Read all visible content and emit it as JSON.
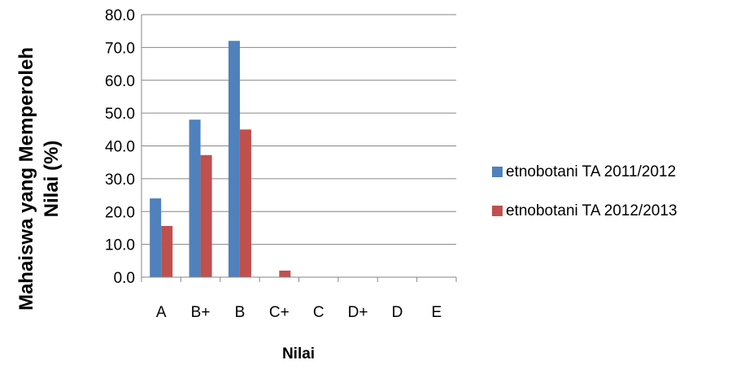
{
  "chart_data": {
    "type": "bar",
    "title": "",
    "xlabel": "Nilai",
    "ylabel_line1": "Mahaiswa yang Memperoleh",
    "ylabel_line2": "Nilai (%)",
    "categories": [
      "A",
      "B+",
      "B",
      "C+",
      "C",
      "D+",
      "D",
      "E"
    ],
    "series": [
      {
        "name": "etnobotani TA 2011/2012",
        "color": "#4F81BD",
        "values": [
          24.0,
          48.0,
          72.0,
          0,
          0,
          0,
          0,
          0
        ]
      },
      {
        "name": "etnobotani TA 2012/2013",
        "color": "#C0504D",
        "values": [
          15.6,
          37.2,
          45.0,
          2.0,
          0,
          0,
          0,
          0
        ]
      }
    ],
    "ylim": [
      0,
      80
    ],
    "yticks": [
      "0.0",
      "10.0",
      "20.0",
      "30.0",
      "40.0",
      "50.0",
      "60.0",
      "70.0",
      "80.0"
    ],
    "grid": true,
    "legend_position": "right"
  }
}
